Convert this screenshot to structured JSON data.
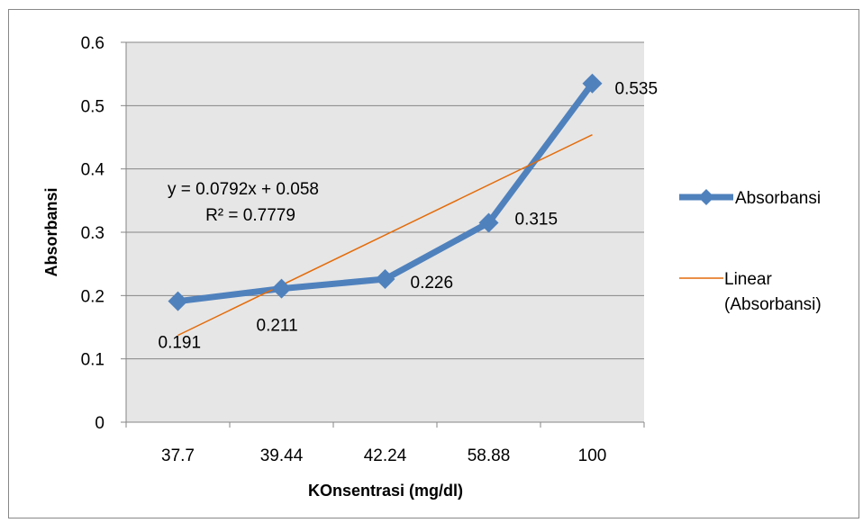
{
  "chart_data": {
    "type": "line",
    "categories": [
      "37.7",
      "39.44",
      "42.24",
      "58.88",
      "100"
    ],
    "series": [
      {
        "name": "Absorbansi",
        "values": [
          0.191,
          0.211,
          0.226,
          0.315,
          0.535
        ],
        "data_labels": [
          "0.191",
          "0.211",
          "0.226",
          "0.315",
          "0.535"
        ],
        "color": "#4F81BD",
        "marker": "diamond"
      }
    ],
    "trendline": {
      "name": "Linear (Absorbansi)",
      "name_lines": [
        "Linear",
        "(Absorbansi)"
      ],
      "type": "linear",
      "slope": 0.0792,
      "intercept": 0.058,
      "equation": "y = 0.0792x + 0.058",
      "r_squared": "R² = 0.7779",
      "color": "#E46C0A"
    },
    "xlabel": "KOnsentrasi (mg/dl)",
    "ylabel": "Absorbansi",
    "ylim": [
      0,
      0.6
    ],
    "yticks": [
      "0",
      "0.1",
      "0.2",
      "0.3",
      "0.4",
      "0.5",
      "0.6"
    ],
    "grid": true,
    "plot_background": "#E6E6E6",
    "legend_position": "right"
  }
}
